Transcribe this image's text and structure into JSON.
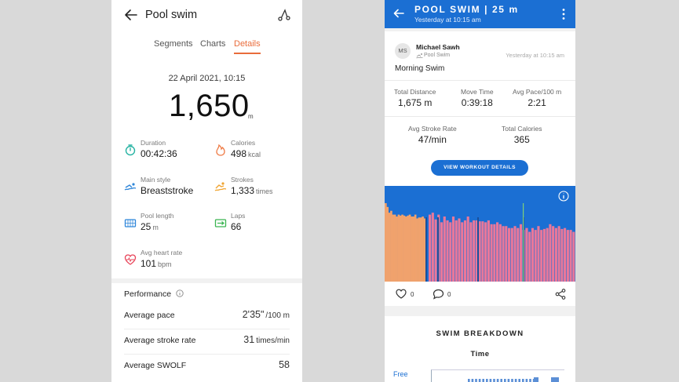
{
  "left": {
    "title": "Pool swim",
    "tabs": [
      "Segments",
      "Charts",
      "Details"
    ],
    "active_tab": "Details",
    "date": "22 April 2021, 10:15",
    "distance": "1,650",
    "distance_unit": "m",
    "stats": [
      {
        "label": "Duration",
        "value": "00:42:36",
        "unit": "",
        "icon": "stopwatch-icon",
        "color": "#27b3a3"
      },
      {
        "label": "Calories",
        "value": "498",
        "unit": "kcal",
        "icon": "flame-icon",
        "color": "#ef7b45"
      },
      {
        "label": "Main style",
        "value": "Breaststroke",
        "unit": "",
        "icon": "swimmer-icon",
        "color": "#2f86d9"
      },
      {
        "label": "Strokes",
        "value": "1,333",
        "unit": "times",
        "icon": "stroke-icon",
        "color": "#f0a431"
      },
      {
        "label": "Pool length",
        "value": "25",
        "unit": "m",
        "icon": "pool-icon",
        "color": "#2f86d9"
      },
      {
        "label": "Laps",
        "value": "66",
        "unit": "",
        "icon": "laps-icon",
        "color": "#3bb552"
      },
      {
        "label": "Avg heart rate",
        "value": "101",
        "unit": "bpm",
        "icon": "heart-rate-icon",
        "color": "#e8455a"
      }
    ],
    "performance_title": "Performance",
    "performance": [
      {
        "label": "Average pace",
        "value": "2'35\"",
        "unit": "/100 m"
      },
      {
        "label": "Average stroke rate",
        "value": "31",
        "unit": "times/min"
      },
      {
        "label": "Average SWOLF",
        "value": "58",
        "unit": ""
      }
    ]
  },
  "right": {
    "title": "POOL SWIM | 25 m",
    "subtitle": "Yesterday at 10:15 am",
    "user_initials": "MS",
    "user_name": "Michael Sawh",
    "activity_type": "Pool Swim",
    "timestamp": "Yesterday at 10:15 am",
    "activity_name": "Morning Swim",
    "stats_row1": [
      {
        "label": "Total Distance",
        "value": "1,675 m"
      },
      {
        "label": "Move Time",
        "value": "0:39:18"
      },
      {
        "label": "Avg Pace/100 m",
        "value": "2:21"
      }
    ],
    "stats_row2": [
      {
        "label": "Avg Stroke Rate",
        "value": "47/min"
      },
      {
        "label": "Total Calories",
        "value": "365"
      }
    ],
    "button_label": "VIEW WORKOUT DETAILS",
    "likes": "0",
    "comments": "0",
    "breakdown_title": "SWIM BREAKDOWN",
    "breakdown_subtitle": "Time",
    "breakdown_first_stroke": "Free",
    "colors": {
      "accent": "#1b6fd3",
      "bar_orange": "#f0a26d",
      "bar_pink": "#e9789a"
    }
  },
  "chart_data": {
    "type": "bar",
    "title": "",
    "xlabel": "",
    "ylabel": "",
    "ylim": [
      0,
      1
    ],
    "series": [
      {
        "values": [
          0.82,
          0.78,
          0.72,
          0.74,
          0.7,
          0.7,
          0.68,
          0.7,
          0.69,
          0.7,
          0.69,
          0.68,
          0.69,
          0.7,
          0.68,
          0.68,
          0.7,
          0.66,
          0.67,
          0.67,
          0.68,
          0.66
        ]
      },
      {
        "values": [
          0.7,
          0.72,
          0.65,
          0.7,
          0.62,
          0.68,
          0.64,
          0.62,
          0.68,
          0.64,
          0.66,
          0.62,
          0.64,
          0.68,
          0.62,
          0.64,
          0.64,
          0.63,
          0.63,
          0.62,
          0.64,
          0.6,
          0.6,
          0.62,
          0.6,
          0.58,
          0.58,
          0.56,
          0.56,
          0.58,
          0.56,
          0.6,
          0.54,
          0.56,
          0.52,
          0.56,
          0.54,
          0.58,
          0.54,
          0.55,
          0.56,
          0.6,
          0.58,
          0.56,
          0.58,
          0.55,
          0.56,
          0.54,
          0.54,
          0.52
        ]
      }
    ]
  }
}
